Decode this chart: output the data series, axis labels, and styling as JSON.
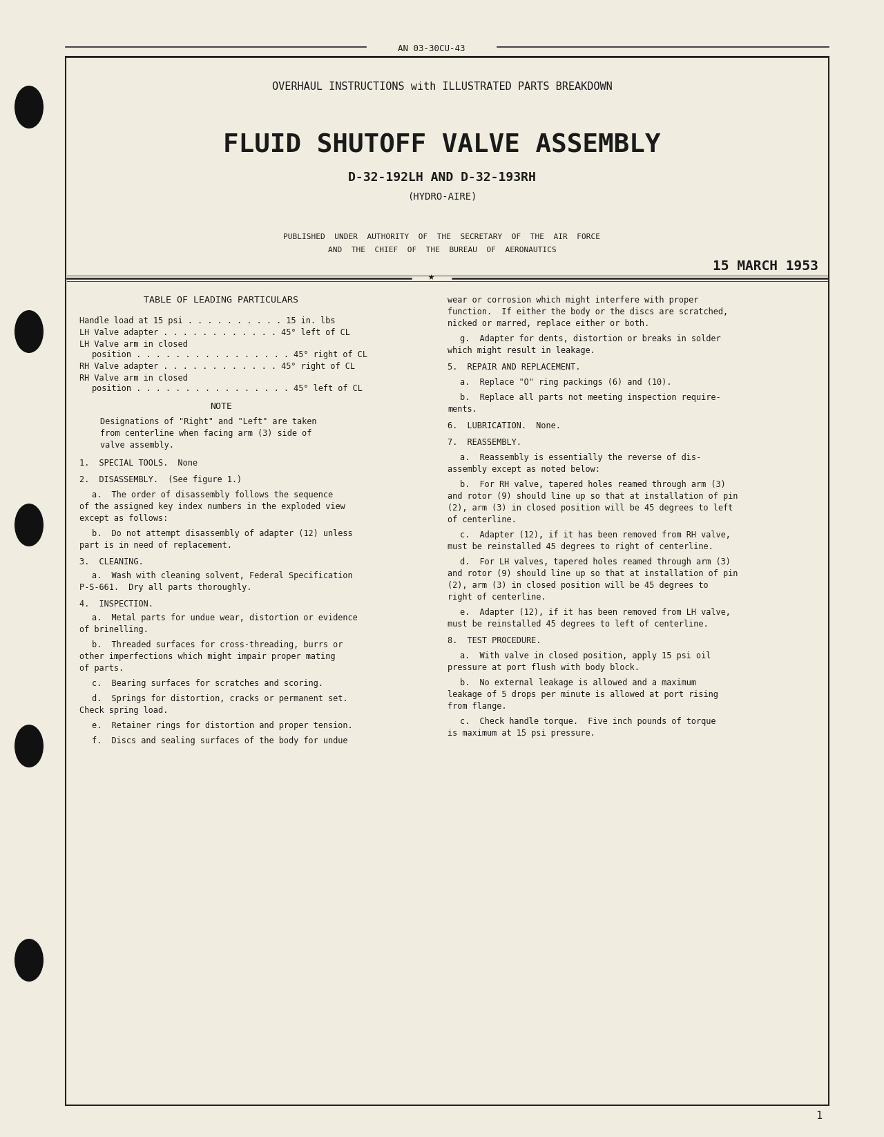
{
  "bg_color": "#f0ede0",
  "text_color": "#1a1a1a",
  "doc_number": "AN 03-30CU-43",
  "subtitle": "OVERHAUL INSTRUCTIONS with ILLUSTRATED PARTS BREAKDOWN",
  "main_title": "FLUID SHUTOFF VALVE ASSEMBLY",
  "model": "D-32-192LH AND D-32-193RH",
  "manufacturer": "(HYDRO-AIRE)",
  "authority_line1": "PUBLISHED  UNDER  AUTHORITY  OF  THE  SECRETARY  OF  THE  AIR  FORCE",
  "authority_line2": "AND  THE  CHIEF  OF  THE  BUREAU  OF  AERONAUTICS",
  "date": "15 MARCH 1953",
  "page_number": "1"
}
